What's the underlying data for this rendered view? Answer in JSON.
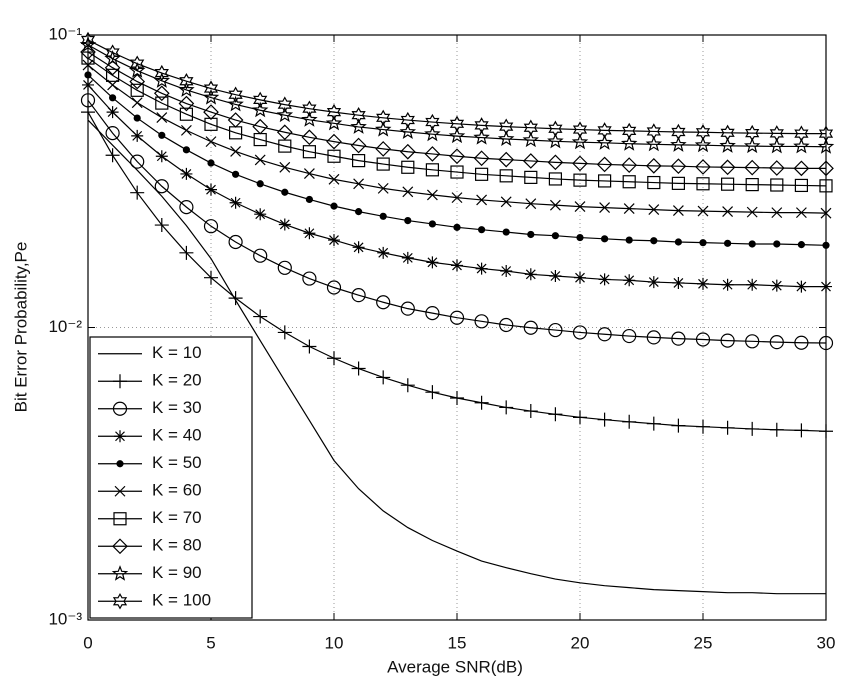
{
  "chart_data": {
    "type": "line",
    "xlabel": "Average SNR(dB)",
    "ylabel": "Bit Error Probability,Pe",
    "x": [
      0,
      1,
      2,
      3,
      4,
      5,
      6,
      7,
      8,
      9,
      10,
      11,
      12,
      13,
      14,
      15,
      16,
      17,
      18,
      19,
      20,
      21,
      22,
      23,
      24,
      25,
      26,
      27,
      28,
      29,
      30
    ],
    "xlim": [
      0,
      30
    ],
    "xticks": [
      0,
      5,
      10,
      15,
      20,
      25,
      30
    ],
    "ylim": [
      0.001,
      0.1
    ],
    "yscale": "log",
    "yticks": [
      {
        "value": 0.001,
        "label": "10⁻³"
      },
      {
        "value": 0.01,
        "label": "10⁻²"
      },
      {
        "value": 0.1,
        "label": "10⁻¹"
      }
    ],
    "grid": true,
    "legend": "lower left",
    "series": [
      {
        "name": "K = 10",
        "color": "#000000",
        "marker": "none",
        "values": [
          0.0512,
          0.042,
          0.0345,
          0.0281,
          0.0223,
          0.0172,
          0.0124,
          0.00902,
          0.00658,
          0.00481,
          0.00351,
          0.00281,
          0.00236,
          0.00207,
          0.00187,
          0.00172,
          0.00159,
          0.00151,
          0.00144,
          0.00138,
          0.00134,
          0.00131,
          0.00129,
          0.00127,
          0.00126,
          0.00125,
          0.00124,
          0.00124,
          0.00123,
          0.00123,
          0.00123
        ]
      },
      {
        "name": "K = 20",
        "color": "#000000",
        "marker": "plus",
        "values": [
          0.0545,
          0.0388,
          0.0289,
          0.0224,
          0.018,
          0.0148,
          0.0126,
          0.0109,
          0.00962,
          0.00861,
          0.00785,
          0.00724,
          0.00675,
          0.00635,
          0.00601,
          0.00574,
          0.00553,
          0.00533,
          0.00518,
          0.00505,
          0.00493,
          0.00484,
          0.00476,
          0.00469,
          0.00462,
          0.00458,
          0.00454,
          0.0045,
          0.00447,
          0.00445,
          0.00442
        ]
      },
      {
        "name": "K = 30",
        "color": "#000000",
        "marker": "circle",
        "values": [
          0.0598,
          0.0462,
          0.0369,
          0.0304,
          0.0258,
          0.0222,
          0.0196,
          0.0176,
          0.016,
          0.0147,
          0.0137,
          0.0129,
          0.0122,
          0.0116,
          0.0112,
          0.0108,
          0.0105,
          0.0102,
          0.00998,
          0.0098,
          0.00962,
          0.00948,
          0.00935,
          0.00925,
          0.00916,
          0.0091,
          0.00902,
          0.00897,
          0.00891,
          0.00887,
          0.00885
        ]
      },
      {
        "name": "K = 40",
        "color": "#000000",
        "marker": "asterisk",
        "values": [
          0.0675,
          0.0545,
          0.0452,
          0.0385,
          0.0335,
          0.0296,
          0.0267,
          0.0244,
          0.0225,
          0.021,
          0.0199,
          0.0188,
          0.018,
          0.0173,
          0.0167,
          0.0163,
          0.0159,
          0.0156,
          0.0152,
          0.015,
          0.0148,
          0.0146,
          0.0145,
          0.0143,
          0.0142,
          0.0141,
          0.014,
          0.014,
          0.0139,
          0.0138,
          0.0138
        ]
      },
      {
        "name": "K = 50",
        "color": "#000000",
        "marker": "dot",
        "values": [
          0.073,
          0.061,
          0.052,
          0.0454,
          0.0405,
          0.0365,
          0.0334,
          0.031,
          0.029,
          0.0274,
          0.026,
          0.0249,
          0.024,
          0.0232,
          0.0226,
          0.022,
          0.0216,
          0.0212,
          0.0208,
          0.0206,
          0.0203,
          0.0201,
          0.0199,
          0.0198,
          0.0196,
          0.0195,
          0.0194,
          0.0193,
          0.0193,
          0.0192,
          0.0191
        ]
      },
      {
        "name": "K = 60",
        "color": "#000000",
        "marker": "x",
        "values": [
          0.0789,
          0.0675,
          0.0587,
          0.0522,
          0.0472,
          0.0432,
          0.04,
          0.0374,
          0.0353,
          0.0336,
          0.0321,
          0.031,
          0.0299,
          0.0291,
          0.0284,
          0.0278,
          0.0273,
          0.0269,
          0.0265,
          0.0262,
          0.0259,
          0.0257,
          0.0255,
          0.0253,
          0.0251,
          0.025,
          0.0249,
          0.0248,
          0.0247,
          0.0247,
          0.0246
        ]
      },
      {
        "name": "K = 70",
        "color": "#000000",
        "marker": "square",
        "values": [
          0.0834,
          0.0728,
          0.0647,
          0.0585,
          0.0536,
          0.0495,
          0.0463,
          0.0439,
          0.0417,
          0.0399,
          0.0385,
          0.0372,
          0.0362,
          0.0353,
          0.0346,
          0.034,
          0.0334,
          0.033,
          0.0326,
          0.0322,
          0.0319,
          0.0317,
          0.0315,
          0.0313,
          0.0311,
          0.031,
          0.0309,
          0.0308,
          0.0307,
          0.0306,
          0.0305
        ]
      },
      {
        "name": "K = 80",
        "color": "#000000",
        "marker": "diamond",
        "values": [
          0.0875,
          0.0773,
          0.0693,
          0.0632,
          0.0583,
          0.0545,
          0.0512,
          0.0486,
          0.0465,
          0.0447,
          0.0432,
          0.0419,
          0.0408,
          0.0399,
          0.0392,
          0.0385,
          0.0379,
          0.0375,
          0.0371,
          0.0367,
          0.0364,
          0.0361,
          0.0359,
          0.0357,
          0.0356,
          0.0354,
          0.0353,
          0.0352,
          0.0351,
          0.035,
          0.035
        ]
      },
      {
        "name": "K = 90",
        "color": "#000000",
        "marker": "star",
        "values": [
          0.0925,
          0.083,
          0.0755,
          0.0697,
          0.0649,
          0.0611,
          0.0579,
          0.0553,
          0.0532,
          0.0513,
          0.0499,
          0.0485,
          0.0475,
          0.0466,
          0.0458,
          0.0451,
          0.0446,
          0.0441,
          0.0437,
          0.0433,
          0.043,
          0.0428,
          0.0425,
          0.0423,
          0.0421,
          0.042,
          0.0418,
          0.0417,
          0.0416,
          0.0416,
          0.0415
        ]
      },
      {
        "name": "K = 100",
        "color": "#000000",
        "marker": "hexagram",
        "values": [
          0.0962,
          0.0871,
          0.0798,
          0.0741,
          0.0695,
          0.0656,
          0.0625,
          0.06,
          0.0578,
          0.056,
          0.0545,
          0.0532,
          0.0521,
          0.0512,
          0.0504,
          0.0497,
          0.0491,
          0.0486,
          0.0482,
          0.0478,
          0.0475,
          0.0472,
          0.047,
          0.0468,
          0.0466,
          0.0465,
          0.0463,
          0.0462,
          0.0461,
          0.046,
          0.046
        ]
      }
    ]
  }
}
